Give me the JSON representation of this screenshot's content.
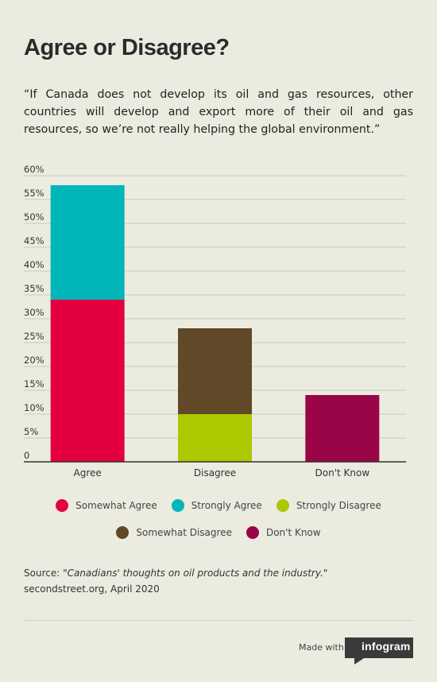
{
  "header": {
    "title": "Agree or Disagree?",
    "quote": "“If Canada does not develop its oil and gas resources, other countries will develop and export more of their oil and gas resources, so we’re not really helping the global environment.”"
  },
  "chart_data": {
    "type": "bar",
    "stacked": true,
    "categories": [
      "Agree",
      "Disagree",
      "Don't Know"
    ],
    "series": [
      {
        "name": "Somewhat Agree",
        "color": "#e4003f",
        "values": [
          34,
          null,
          null
        ]
      },
      {
        "name": "Strongly Agree",
        "color": "#00b6b8",
        "values": [
          24,
          null,
          null
        ]
      },
      {
        "name": "Strongly Disagree",
        "color": "#adc700",
        "values": [
          null,
          10,
          null
        ]
      },
      {
        "name": "Somewhat Disagree",
        "color": "#604829",
        "values": [
          null,
          18,
          null
        ]
      },
      {
        "name": "Don't Know",
        "color": "#9a0548",
        "values": [
          null,
          null,
          14
        ]
      }
    ],
    "ylim": [
      0,
      60
    ],
    "yticks": [
      "0",
      "5%",
      "10%",
      "15%",
      "20%",
      "25%",
      "30%",
      "35%",
      "40%",
      "45%",
      "50%",
      "55%",
      "60%"
    ],
    "grid": true,
    "legend_position": "bottom"
  },
  "legend": {
    "rows": [
      [
        {
          "label": "Somewhat Agree",
          "color": "#e4003f"
        },
        {
          "label": "Strongly Agree",
          "color": "#00b6b8"
        },
        {
          "label": "Strongly Disagree",
          "color": "#adc700"
        }
      ],
      [
        {
          "label": "Somewhat Disagree",
          "color": "#604829"
        },
        {
          "label": "Don't Know",
          "color": "#9a0548"
        }
      ]
    ]
  },
  "source": {
    "prefix": "Source: ",
    "title": "\"Canadians' thoughts on oil products and the industry.\"",
    "suffix": " secondstreet.org, April 2020"
  },
  "footer": {
    "made_with": "Made with",
    "brand": "infogram"
  }
}
